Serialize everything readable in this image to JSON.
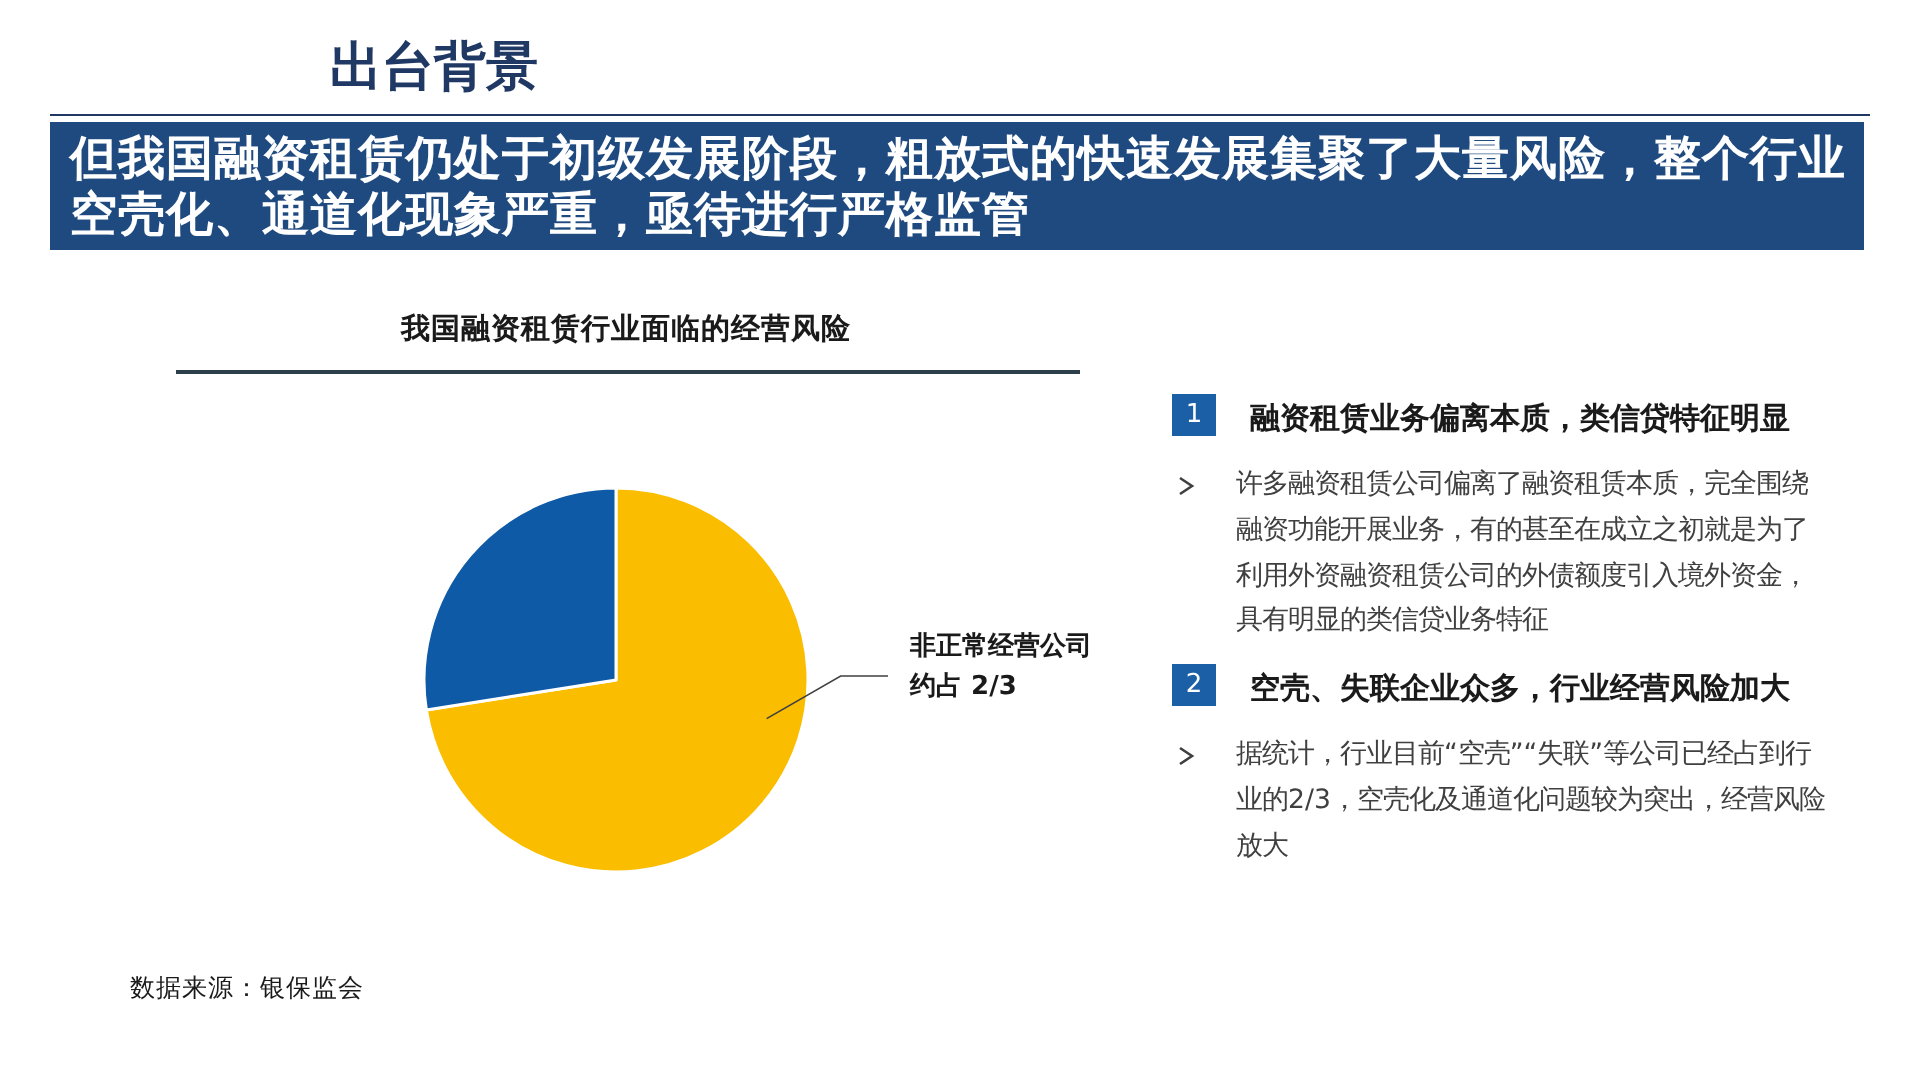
{
  "chart_data": [
    {
      "type": "other",
      "title": "出台背景",
      "subtitle": "但我国融资租赁仍处于初级发展阶段，粗放式的快速发展集聚了大量风险，整个行业空壳化、通道化现象严重，亟待进行严格监管"
    },
    {
      "type": "pie",
      "title": "我国融资租赁行业面临的经营风险",
      "categories": [
        "非正常经营公司约占 2/3",
        null
      ],
      "values": [
        72.5,
        27.5
      ],
      "colors": [
        "#fbbd00",
        "#0e5aa7"
      ],
      "annotations": [
        "数据来源：银保监会"
      ]
    },
    {
      "type": "other",
      "annotations": [
        "1",
        "融资租赁业务偏离本质，类信贷特征明显",
        "许多融资租赁公司偏离了融资租赁本质，完全围绕融资功能开展业务，有的甚至在成立之初就是为了利用外资融资租赁公司的外债额度引入境外资金，具有明显的类信贷业务特征",
        "2",
        "空壳、失联企业众多，行业经营风险加大",
        "据统计，行业目前“空壳”“失联”等公司已经占到行业的2/3，空壳化及通道化问题较为突出，经营风险放大"
      ]
    }
  ]
}
